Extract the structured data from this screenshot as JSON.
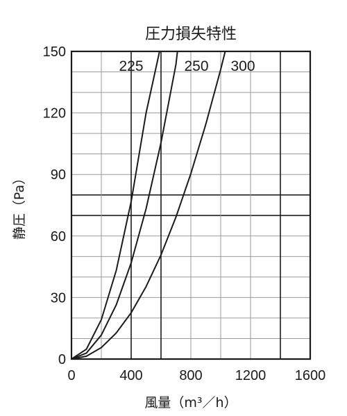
{
  "chart_data": {
    "type": "line",
    "title": "圧力損失特性",
    "xlabel": "風量（m³／h）",
    "ylabel": "静圧（Pa）",
    "xlim": [
      0,
      1600
    ],
    "ylim": [
      0,
      150
    ],
    "x_ticks": [
      0,
      400,
      800,
      1200,
      1600
    ],
    "y_ticks": [
      0,
      30,
      60,
      90,
      120,
      150
    ],
    "x_tick_labels": [
      "0",
      "400",
      "800",
      "1200",
      "1600"
    ],
    "y_tick_labels": [
      "0",
      "30",
      "60",
      "90",
      "120",
      "150"
    ],
    "grid": true,
    "series": [
      {
        "name": "225",
        "x": [
          0,
          100,
          200,
          300,
          400,
          500,
          590
        ],
        "y": [
          0,
          4.8,
          19.2,
          43.2,
          76.8,
          120,
          150
        ]
      },
      {
        "name": "250",
        "x": [
          0,
          100,
          200,
          300,
          400,
          500,
          600,
          700,
          710
        ],
        "y": [
          0,
          2.9,
          11.7,
          26.4,
          46.9,
          73.3,
          105.5,
          143.6,
          150
        ]
      },
      {
        "name": "300",
        "x": [
          0,
          100,
          200,
          300,
          400,
          500,
          600,
          700,
          800,
          900,
          1000,
          1030
        ],
        "y": [
          0,
          1.4,
          5.6,
          12.7,
          22.6,
          35.3,
          50.8,
          69.2,
          90.4,
          114.4,
          141.2,
          150
        ]
      }
    ]
  }
}
